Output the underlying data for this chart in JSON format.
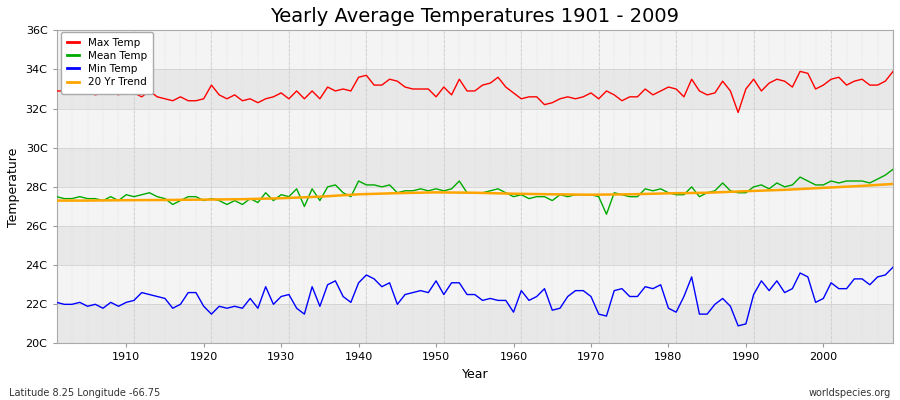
{
  "title": "Yearly Average Temperatures 1901 - 2009",
  "xlabel": "Year",
  "ylabel": "Temperature",
  "lat_lon_label": "Latitude 8.25 Longitude -66.75",
  "source_label": "worldspecies.org",
  "years": [
    1901,
    1902,
    1903,
    1904,
    1905,
    1906,
    1907,
    1908,
    1909,
    1910,
    1911,
    1912,
    1913,
    1914,
    1915,
    1916,
    1917,
    1918,
    1919,
    1920,
    1921,
    1922,
    1923,
    1924,
    1925,
    1926,
    1927,
    1928,
    1929,
    1930,
    1931,
    1932,
    1933,
    1934,
    1935,
    1936,
    1937,
    1938,
    1939,
    1940,
    1941,
    1942,
    1943,
    1944,
    1945,
    1946,
    1947,
    1948,
    1949,
    1950,
    1951,
    1952,
    1953,
    1954,
    1955,
    1956,
    1957,
    1958,
    1959,
    1960,
    1961,
    1962,
    1963,
    1964,
    1965,
    1966,
    1967,
    1968,
    1969,
    1970,
    1971,
    1972,
    1973,
    1974,
    1975,
    1976,
    1977,
    1978,
    1979,
    1980,
    1981,
    1982,
    1983,
    1984,
    1985,
    1986,
    1987,
    1988,
    1989,
    1990,
    1991,
    1992,
    1993,
    1994,
    1995,
    1996,
    1997,
    1998,
    1999,
    2000,
    2001,
    2002,
    2003,
    2004,
    2005,
    2006,
    2007,
    2008,
    2009
  ],
  "max_temp": [
    32.9,
    32.9,
    32.8,
    32.8,
    32.9,
    32.7,
    32.8,
    32.9,
    32.7,
    33.0,
    32.8,
    32.6,
    32.9,
    32.6,
    32.5,
    32.4,
    32.6,
    32.4,
    32.4,
    32.5,
    33.2,
    32.7,
    32.5,
    32.7,
    32.4,
    32.5,
    32.3,
    32.5,
    32.6,
    32.8,
    32.5,
    32.9,
    32.5,
    32.9,
    32.5,
    33.1,
    32.9,
    33.0,
    32.9,
    33.6,
    33.7,
    33.2,
    33.2,
    33.5,
    33.4,
    33.1,
    33.0,
    33.0,
    33.0,
    32.6,
    33.1,
    32.7,
    33.5,
    32.9,
    32.9,
    33.2,
    33.3,
    33.6,
    33.1,
    32.8,
    32.5,
    32.6,
    32.6,
    32.2,
    32.3,
    32.5,
    32.6,
    32.5,
    32.6,
    32.8,
    32.5,
    32.9,
    32.7,
    32.4,
    32.6,
    32.6,
    33.0,
    32.7,
    32.9,
    33.1,
    33.0,
    32.6,
    33.5,
    32.9,
    32.7,
    32.8,
    33.4,
    32.9,
    31.8,
    33.0,
    33.5,
    32.9,
    33.3,
    33.5,
    33.4,
    33.1,
    33.9,
    33.8,
    33.0,
    33.2,
    33.5,
    33.6,
    33.2,
    33.4,
    33.5,
    33.2,
    33.2,
    33.4,
    33.9
  ],
  "mean_temp": [
    27.5,
    27.4,
    27.4,
    27.5,
    27.4,
    27.4,
    27.3,
    27.5,
    27.3,
    27.6,
    27.5,
    27.6,
    27.7,
    27.5,
    27.4,
    27.1,
    27.3,
    27.5,
    27.5,
    27.3,
    27.4,
    27.3,
    27.1,
    27.3,
    27.1,
    27.4,
    27.2,
    27.7,
    27.3,
    27.6,
    27.5,
    27.9,
    27.0,
    27.9,
    27.3,
    28.0,
    28.1,
    27.7,
    27.5,
    28.3,
    28.1,
    28.1,
    28.0,
    28.1,
    27.7,
    27.8,
    27.8,
    27.9,
    27.8,
    27.9,
    27.8,
    27.9,
    28.3,
    27.7,
    27.7,
    27.7,
    27.8,
    27.9,
    27.7,
    27.5,
    27.6,
    27.4,
    27.5,
    27.5,
    27.3,
    27.6,
    27.5,
    27.6,
    27.6,
    27.6,
    27.5,
    26.6,
    27.7,
    27.6,
    27.5,
    27.5,
    27.9,
    27.8,
    27.9,
    27.7,
    27.6,
    27.6,
    28.0,
    27.5,
    27.7,
    27.8,
    28.2,
    27.8,
    27.7,
    27.7,
    28.0,
    28.1,
    27.9,
    28.2,
    28.0,
    28.1,
    28.5,
    28.3,
    28.1,
    28.1,
    28.3,
    28.2,
    28.3,
    28.3,
    28.3,
    28.2,
    28.4,
    28.6,
    28.9
  ],
  "min_temp": [
    22.1,
    22.0,
    22.0,
    22.1,
    21.9,
    22.0,
    21.8,
    22.1,
    21.9,
    22.1,
    22.2,
    22.6,
    22.5,
    22.4,
    22.3,
    21.8,
    22.0,
    22.6,
    22.6,
    21.9,
    21.5,
    21.9,
    21.8,
    21.9,
    21.8,
    22.3,
    21.8,
    22.9,
    22.0,
    22.4,
    22.5,
    21.8,
    21.5,
    22.9,
    21.9,
    23.0,
    23.2,
    22.4,
    22.1,
    23.1,
    23.5,
    23.3,
    22.9,
    23.1,
    22.0,
    22.5,
    22.6,
    22.7,
    22.6,
    23.2,
    22.5,
    23.1,
    23.1,
    22.5,
    22.5,
    22.2,
    22.3,
    22.2,
    22.2,
    21.6,
    22.7,
    22.2,
    22.4,
    22.8,
    21.7,
    21.8,
    22.4,
    22.7,
    22.7,
    22.4,
    21.5,
    21.4,
    22.7,
    22.8,
    22.4,
    22.4,
    22.9,
    22.8,
    23.0,
    21.8,
    21.6,
    22.4,
    23.4,
    21.5,
    21.5,
    22.0,
    22.3,
    21.9,
    20.9,
    21.0,
    22.5,
    23.2,
    22.7,
    23.2,
    22.6,
    22.8,
    23.6,
    23.4,
    22.1,
    22.3,
    23.1,
    22.8,
    22.8,
    23.3,
    23.3,
    23.0,
    23.4,
    23.5,
    23.9
  ],
  "trend_years": [
    1901,
    1905,
    1910,
    1915,
    1920,
    1925,
    1930,
    1935,
    1940,
    1945,
    1950,
    1955,
    1960,
    1965,
    1970,
    1975,
    1980,
    1985,
    1990,
    1995,
    2000,
    2005,
    2009
  ],
  "trend_values": [
    27.3,
    27.3,
    27.32,
    27.33,
    27.35,
    27.37,
    27.42,
    27.5,
    27.62,
    27.68,
    27.72,
    27.7,
    27.65,
    27.62,
    27.6,
    27.62,
    27.67,
    27.7,
    27.78,
    27.85,
    27.95,
    28.05,
    28.15
  ],
  "background_color": "#ffffff",
  "plot_bg_color_light": "#f0f0f0",
  "plot_bg_color_dark": "#e0e0e0",
  "grid_color": "#ffffff",
  "max_color": "#ff0000",
  "mean_color": "#00aa00",
  "min_color": "#0000ff",
  "trend_color": "#ffa500",
  "ylim": [
    20,
    36
  ],
  "yticks": [
    20,
    22,
    24,
    26,
    28,
    30,
    32,
    34,
    36
  ],
  "ytick_labels": [
    "20C",
    "22C",
    "24C",
    "26C",
    "28C",
    "30C",
    "32C",
    "34C",
    "36C"
  ],
  "title_fontsize": 14,
  "axis_fontsize": 9,
  "tick_fontsize": 8
}
